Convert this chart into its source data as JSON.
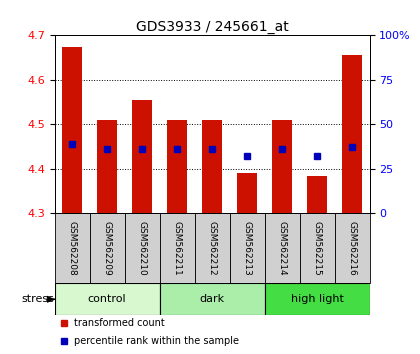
{
  "title": "GDS3933 / 245661_at",
  "samples": [
    "GSM562208",
    "GSM562209",
    "GSM562210",
    "GSM562211",
    "GSM562212",
    "GSM562213",
    "GSM562214",
    "GSM562215",
    "GSM562216"
  ],
  "bar_tops": [
    4.675,
    4.51,
    4.555,
    4.51,
    4.51,
    4.39,
    4.51,
    4.385,
    4.655
  ],
  "bar_bottoms": [
    4.3,
    4.3,
    4.3,
    4.3,
    4.3,
    4.3,
    4.3,
    4.3,
    4.3
  ],
  "percentile_values": [
    4.455,
    4.445,
    4.445,
    4.445,
    4.445,
    4.43,
    4.445,
    4.43,
    4.45
  ],
  "ylim": [
    4.3,
    4.7
  ],
  "yticks": [
    4.3,
    4.4,
    4.5,
    4.6,
    4.7
  ],
  "right_ytick_labels": [
    "0",
    "25",
    "50",
    "75",
    "100%"
  ],
  "right_ytick_vals": [
    0,
    25,
    50,
    75,
    100
  ],
  "right_ylim": [
    0,
    100
  ],
  "bar_color": "#cc1100",
  "percentile_color": "#0000bb",
  "groups": [
    {
      "label": "control",
      "start": 0,
      "end": 3,
      "color": "#d8f8d0"
    },
    {
      "label": "dark",
      "start": 3,
      "end": 6,
      "color": "#aaeeaa"
    },
    {
      "label": "high light",
      "start": 6,
      "end": 9,
      "color": "#44dd44"
    }
  ],
  "stress_label": "stress",
  "legend_items": [
    {
      "label": "transformed count",
      "color": "#cc1100"
    },
    {
      "label": "percentile rank within the sample",
      "color": "#0000bb"
    }
  ],
  "title_fontsize": 10,
  "tick_fontsize": 8,
  "label_fontsize": 8,
  "group_label_fontsize": 8,
  "sample_fontsize": 6.5
}
